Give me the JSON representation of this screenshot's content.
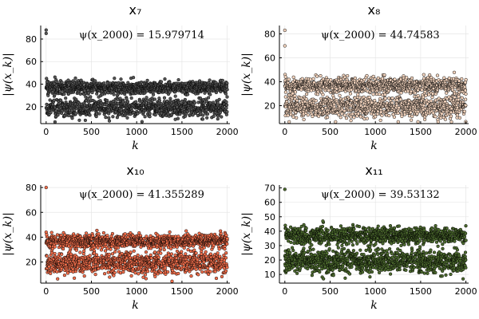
{
  "chart_data": [
    {
      "type": "scatter",
      "title": "x₇",
      "xlabel": "k",
      "ylabel": "|ψ(x_k)|",
      "annotation": "ψ(x_2000) = 15.979714",
      "xlim": [
        -60,
        2030
      ],
      "ylim": [
        5,
        92
      ],
      "xticks": [
        0,
        500,
        1000,
        1500,
        2000
      ],
      "yticks": [
        20,
        40,
        60,
        80
      ],
      "grid": true,
      "marker_color": "#555555",
      "n_points": 2000,
      "bands": [
        {
          "center": 37,
          "spread": 3.5
        },
        {
          "center": 19,
          "spread": 5
        }
      ],
      "outliers": [
        {
          "x": 0,
          "y": 88
        },
        {
          "x": 0,
          "y": 85
        },
        {
          "x": 4,
          "y": 45
        },
        {
          "x": 10,
          "y": 42
        }
      ]
    },
    {
      "type": "scatter",
      "title": "x₈",
      "xlabel": "k",
      "ylabel": "|ψ(x_k)|",
      "annotation": "ψ(x_2000) = 44.74583",
      "xlim": [
        -60,
        2030
      ],
      "ylim": [
        5,
        87
      ],
      "xticks": [
        0,
        500,
        1000,
        1500,
        2000
      ],
      "yticks": [
        20,
        40,
        60,
        80
      ],
      "grid": true,
      "marker_color": "#f2d3bd",
      "n_points": 2000,
      "bands": [
        {
          "center": 37,
          "spread": 4
        },
        {
          "center": 19,
          "spread": 6
        }
      ],
      "outliers": [
        {
          "x": 0,
          "y": 83
        },
        {
          "x": 0,
          "y": 70
        },
        {
          "x": 3,
          "y": 46
        },
        {
          "x": 8,
          "y": 44
        }
      ]
    },
    {
      "type": "scatter",
      "title": "x₁₀",
      "xlabel": "k",
      "ylabel": "|ψ(x_k)|",
      "annotation": "ψ(x_2000) = 41.355289",
      "xlim": [
        -60,
        2030
      ],
      "ylim": [
        3,
        82
      ],
      "xticks": [
        0,
        500,
        1000,
        1500,
        2000
      ],
      "yticks": [
        20,
        40,
        60,
        80
      ],
      "grid": true,
      "marker_color": "#f26f4c",
      "n_points": 2000,
      "bands": [
        {
          "center": 37,
          "spread": 3.5
        },
        {
          "center": 19,
          "spread": 5.5
        }
      ],
      "outliers": [
        {
          "x": 0,
          "y": 80
        },
        {
          "x": 0,
          "y": 44
        },
        {
          "x": 5,
          "y": 42
        }
      ]
    },
    {
      "type": "scatter",
      "title": "x₁₁",
      "xlabel": "k",
      "ylabel": "|ψ(x_k)|",
      "annotation": "ψ(x_2000) = 39.53132",
      "xlim": [
        -60,
        2030
      ],
      "ylim": [
        4,
        72
      ],
      "xticks": [
        0,
        500,
        1000,
        1500,
        2000
      ],
      "yticks": [
        10,
        20,
        30,
        40,
        50,
        60,
        70
      ],
      "grid": true,
      "marker_color": "#4c6a2e",
      "n_points": 2000,
      "bands": [
        {
          "center": 37,
          "spread": 3.5
        },
        {
          "center": 19,
          "spread": 5
        }
      ],
      "outliers": [
        {
          "x": 0,
          "y": 69
        },
        {
          "x": 420,
          "y": 47
        },
        {
          "x": 5,
          "y": 44
        }
      ]
    }
  ]
}
